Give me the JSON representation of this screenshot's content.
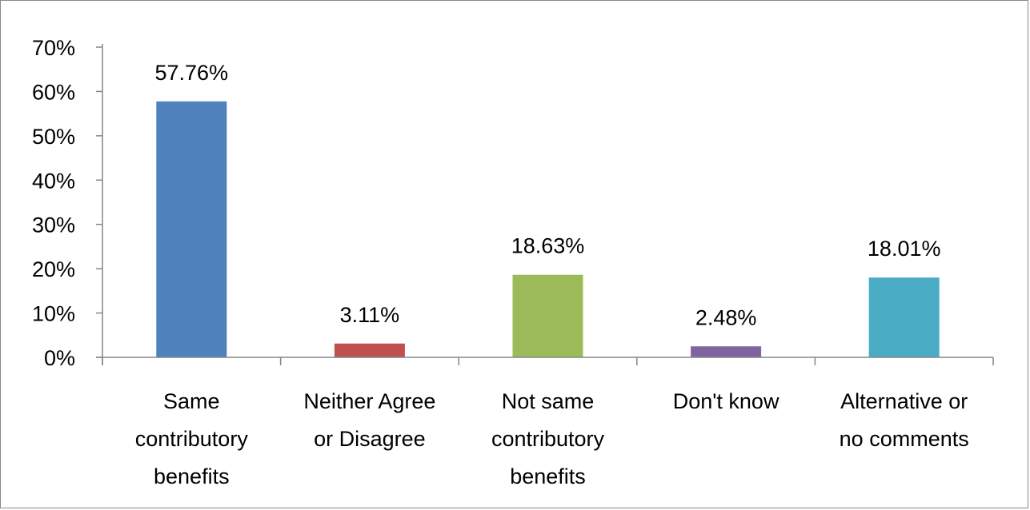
{
  "chart_data": {
    "type": "bar",
    "title": "",
    "xlabel": "",
    "ylabel": "",
    "ylim": [
      0,
      70
    ],
    "y_ticks": [
      "0%",
      "10%",
      "20%",
      "30%",
      "40%",
      "50%",
      "60%",
      "70%"
    ],
    "grid": false,
    "legend": "none",
    "categories": [
      [
        "Same",
        "contributory",
        "benefits"
      ],
      [
        "Neither Agree",
        "or Disagree"
      ],
      [
        "Not same",
        "contributory",
        "benefits"
      ],
      [
        "Don't know"
      ],
      [
        "Alternative or",
        "no comments"
      ]
    ],
    "values": [
      57.76,
      3.11,
      18.63,
      2.48,
      18.01
    ],
    "data_labels": [
      "57.76%",
      "3.11%",
      "18.63%",
      "2.48%",
      "18.01%"
    ],
    "colors": [
      "#4F81BD",
      "#C0504D",
      "#9BBB59",
      "#8064A2",
      "#4BACC6"
    ]
  }
}
